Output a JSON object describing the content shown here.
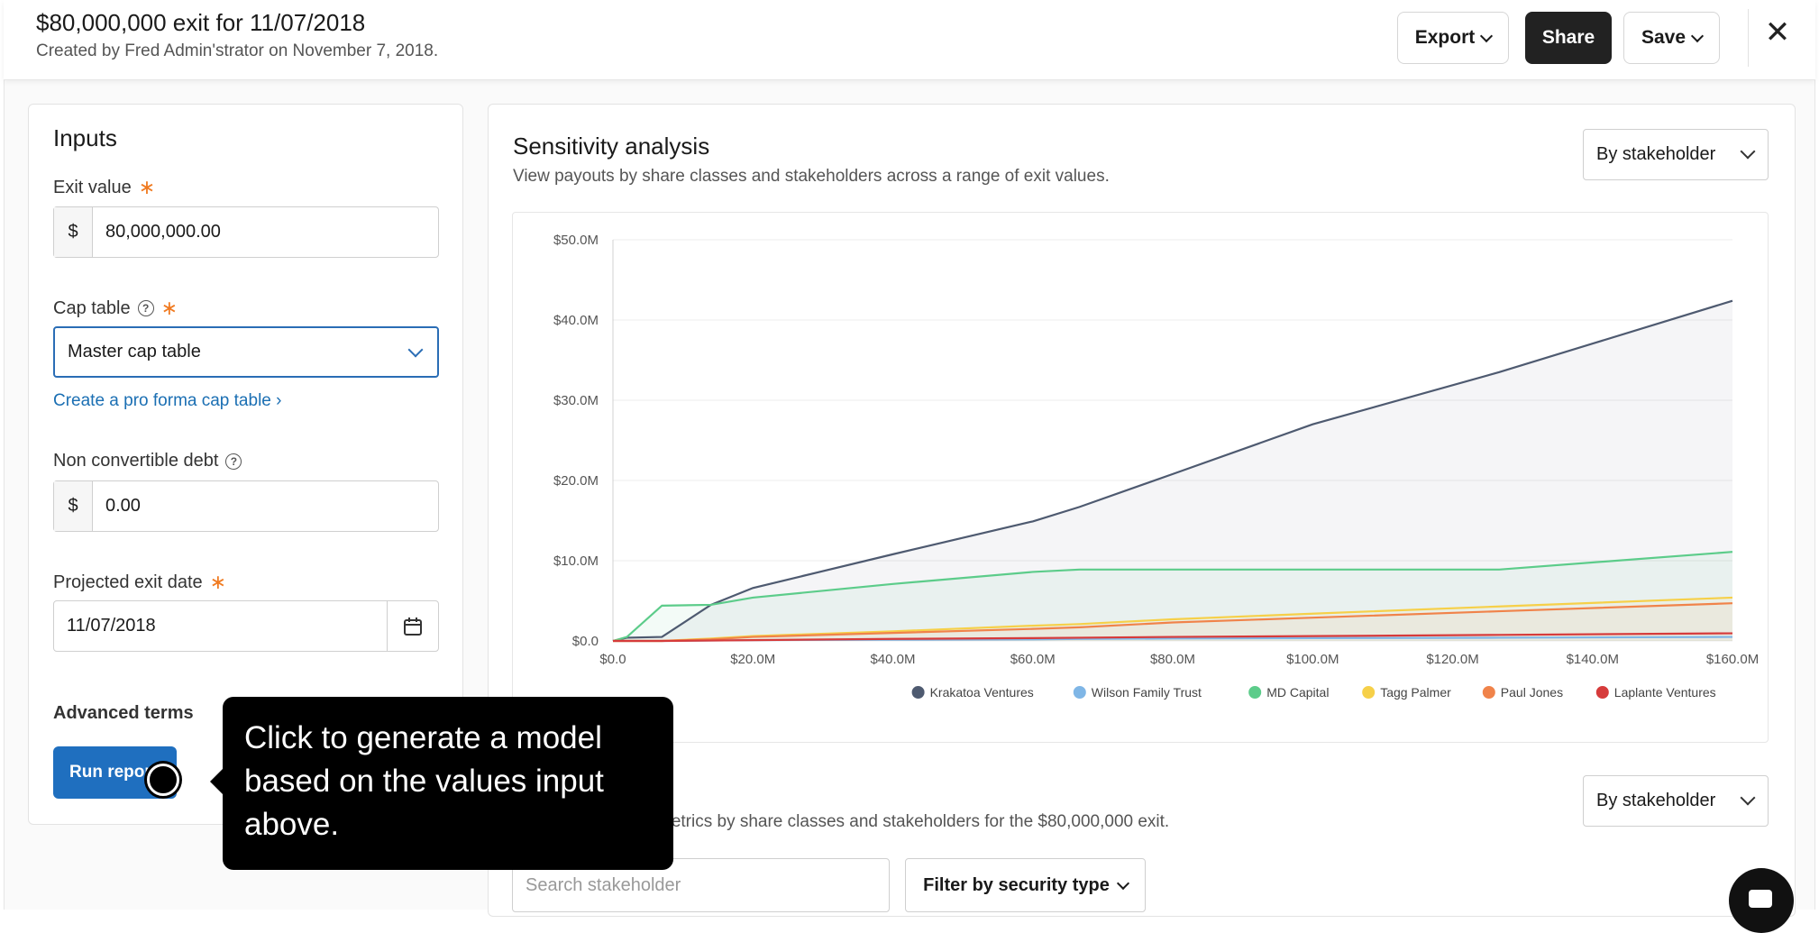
{
  "header": {
    "title": "$80,000,000 exit for 11/07/2018",
    "subtitle": "Created by Fred Admin'strator on November 7, 2018.",
    "export_label": "Export",
    "share_label": "Share",
    "save_label": "Save",
    "close_icon": "close-icon"
  },
  "inputs": {
    "heading": "Inputs",
    "exit_value_label": "Exit value",
    "exit_value_prefix": "$",
    "exit_value": "80,000,000.00",
    "cap_table_label": "Cap table",
    "cap_table_value": "Master cap table",
    "pro_forma_link": "Create a pro forma cap table ›",
    "debt_label": "Non convertible debt",
    "debt_prefix": "$",
    "debt_value": "0.00",
    "exit_date_label": "Projected exit date",
    "exit_date_value": "11/07/2018",
    "advanced_terms": "Advanced terms",
    "run_report_label": "Run report"
  },
  "sensitivity": {
    "title": "Sensitivity analysis",
    "description": "View payouts by share classes and stakeholders across a range of exit values.",
    "view_select": "By stakeholder"
  },
  "metrics": {
    "description": "metrics by share classes and stakeholders for the $80,000,000 exit.",
    "view_select": "By stakeholder",
    "search_placeholder": "Search stakeholder",
    "filter_label": "Filter by security type"
  },
  "tooltip": {
    "text": "Click to generate a model based on the values input above."
  },
  "chart_data": {
    "type": "area",
    "x": [
      0,
      2,
      7,
      14,
      20,
      40,
      60,
      66.67,
      80,
      100,
      126.67,
      160
    ],
    "x_unit": "M",
    "xlim": [
      0,
      160
    ],
    "ylim": [
      0,
      50
    ],
    "xticks": [
      "$0.0",
      "$20.0M",
      "$40.0M",
      "$60.0M",
      "$80.0M",
      "$100.0M",
      "$120.0M",
      "$140.0M",
      "$160.0M"
    ],
    "yticks": [
      "$0.0",
      "$10.0M",
      "$20.0M",
      "$30.0M",
      "$40.0M",
      "$50.0M"
    ],
    "series": [
      {
        "name": "Krakatoa Ventures",
        "color": "#4e5a70",
        "fill": "rgba(78,90,112,0.06)",
        "values": [
          0,
          0.4,
          0.5,
          4.5,
          6.6,
          10.8,
          14.9,
          16.7,
          20.8,
          27.0,
          33.5,
          42.4
        ]
      },
      {
        "name": "Wilson Family Trust",
        "color": "#7fb6e6",
        "fill": "none",
        "values": [
          0,
          0,
          0,
          0.05,
          0.1,
          0.15,
          0.2,
          0.25,
          0.3,
          0.35,
          0.4,
          0.5
        ]
      },
      {
        "name": "MD Capital",
        "color": "#5ccc8a",
        "fill": "rgba(92,204,138,0.07)",
        "values": [
          0,
          0.5,
          4.4,
          4.5,
          5.4,
          7.1,
          8.6,
          8.9,
          8.9,
          8.9,
          8.9,
          11.1
        ]
      },
      {
        "name": "Tagg Palmer",
        "color": "#f6d049",
        "fill": "rgba(246,208,73,0.05)",
        "values": [
          0,
          0,
          0,
          0.3,
          0.6,
          1.2,
          1.9,
          2.1,
          2.7,
          3.4,
          4.3,
          5.4
        ]
      },
      {
        "name": "Paul Jones",
        "color": "#f0834a",
        "fill": "rgba(240,131,74,0.05)",
        "values": [
          0,
          0,
          0,
          0.2,
          0.5,
          1.0,
          1.5,
          1.7,
          2.3,
          2.9,
          3.7,
          4.7
        ]
      },
      {
        "name": "Laplante Ventures",
        "color": "#d63b3b",
        "fill": "none",
        "values": [
          0,
          0,
          0,
          0.05,
          0.1,
          0.25,
          0.35,
          0.4,
          0.5,
          0.6,
          0.75,
          0.95
        ]
      }
    ]
  }
}
